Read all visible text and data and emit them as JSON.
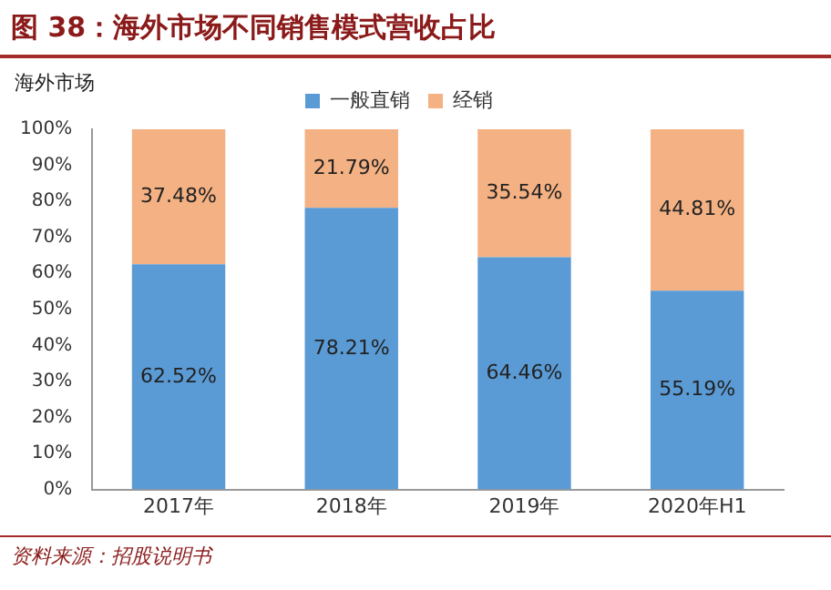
{
  "chart_data": {
    "type": "bar",
    "title": "图 38：海外市场不同销售模式营收占比",
    "ylabel": "海外市场",
    "annotations": [
      "资料来源：招股说明书"
    ],
    "categories": [
      "2017年",
      "2018年",
      "2019年",
      "2020年H1"
    ],
    "stacked": true,
    "legend": "top",
    "ylim": [
      0,
      100
    ],
    "yticks": [
      {
        "value": 0,
        "label": "0%"
      },
      {
        "value": 10,
        "label": "10%"
      },
      {
        "value": 20,
        "label": "20%"
      },
      {
        "value": 30,
        "label": "30%"
      },
      {
        "value": 40,
        "label": "40%"
      },
      {
        "value": 50,
        "label": "50%"
      },
      {
        "value": 60,
        "label": "60%"
      },
      {
        "value": 70,
        "label": "70%"
      },
      {
        "value": 80,
        "label": "80%"
      },
      {
        "value": 90,
        "label": "90%"
      },
      {
        "value": 100,
        "label": "100%"
      }
    ],
    "series": [
      {
        "name": "一般直销",
        "color": "#5b9bd5",
        "values": [
          62.52,
          78.21,
          64.46,
          55.19
        ],
        "value_labels": [
          "62.52%",
          "78.21%",
          "64.46%",
          "55.19%"
        ]
      },
      {
        "name": "经销",
        "color": "#f4b183",
        "values": [
          37.48,
          21.79,
          35.54,
          44.81
        ],
        "value_labels": [
          "37.48%",
          "21.79%",
          "35.54%",
          "44.81%"
        ]
      }
    ]
  }
}
